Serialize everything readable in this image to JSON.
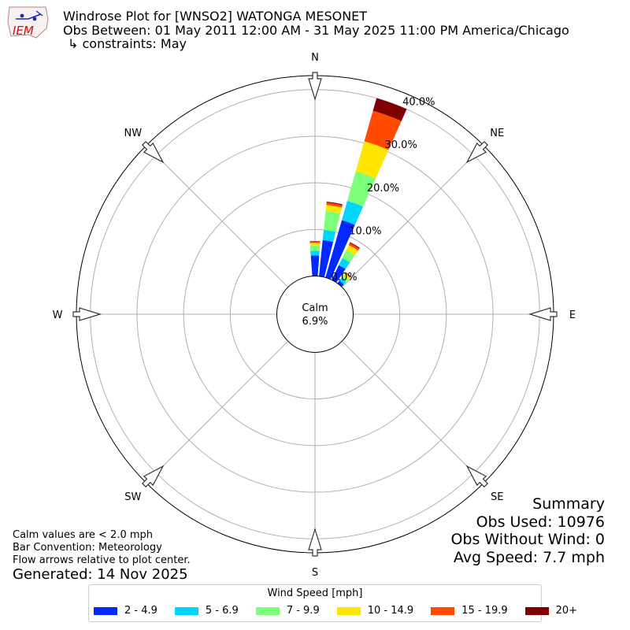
{
  "header": {
    "logo_text": "IEM",
    "title": "Windrose Plot for [WNSO2] WATONGA MESONET",
    "obs_between": "Obs Between: 01 May 2011 12:00 AM - 31 May 2025 11:00 PM America/Chicago",
    "constraints": "↳ constraints: May"
  },
  "notes": {
    "calm_note": "Calm values are < 2.0 mph",
    "bar_convention": "Bar Convention: Meteorology",
    "flow_arrows": "Flow arrows relative to plot center.",
    "generated": "Generated: 14 Nov 2025"
  },
  "summary": {
    "title": "Summary",
    "obs_used": "Obs Used: 10976",
    "obs_without_wind": "Obs Without Wind: 0",
    "avg_speed": "Avg Speed: 7.7 mph"
  },
  "colors": {
    "bins": [
      "#0028ff",
      "#00d4ff",
      "#7cff79",
      "#ffe500",
      "#ff4a00",
      "#800000"
    ],
    "grid": "#b0b0b0",
    "outer": "#000000"
  },
  "chart_data": {
    "type": "windrose",
    "title": "Windrose Plot for [WNSO2] WATONGA MESONET",
    "calm": {
      "label": "Calm",
      "value_label": "6.9%",
      "percent": 6.9
    },
    "direction_labels": [
      "N",
      "NE",
      "E",
      "SE",
      "S",
      "SW",
      "W",
      "NW"
    ],
    "radial_ticks": [
      0,
      10,
      20,
      30,
      40
    ],
    "radial_tick_labels": [
      "0.0%",
      "10.0%",
      "20.0%",
      "30.0%",
      "40.0%"
    ],
    "rmax_percent": 43,
    "legend": {
      "title": "Wind Speed [mph]",
      "placement": "bottom-center",
      "labels": [
        "2 - 4.9",
        "5 - 6.9",
        "7 - 9.9",
        "10 - 14.9",
        "15 - 19.9",
        "20+"
      ]
    },
    "bars": [
      {
        "direction_deg": 0,
        "cumulative_percent": [
          4.4,
          5.4,
          6.6,
          7.1,
          7.4,
          7.5
        ]
      },
      {
        "direction_deg": 10,
        "cumulative_percent": [
          7.8,
          10.0,
          14.1,
          15.4,
          15.9,
          16.1
        ]
      },
      {
        "direction_deg": 20,
        "cumulative_percent": [
          12.8,
          17.1,
          23.7,
          30.4,
          37.2,
          40.0
        ]
      },
      {
        "direction_deg": 30,
        "cumulative_percent": [
          3.5,
          5.2,
          7.1,
          8.3,
          8.8,
          9.0
        ]
      },
      {
        "direction_deg": 40,
        "cumulative_percent": [
          0.7,
          1.4,
          2.2,
          2.7,
          2.9,
          3.0
        ]
      }
    ]
  }
}
